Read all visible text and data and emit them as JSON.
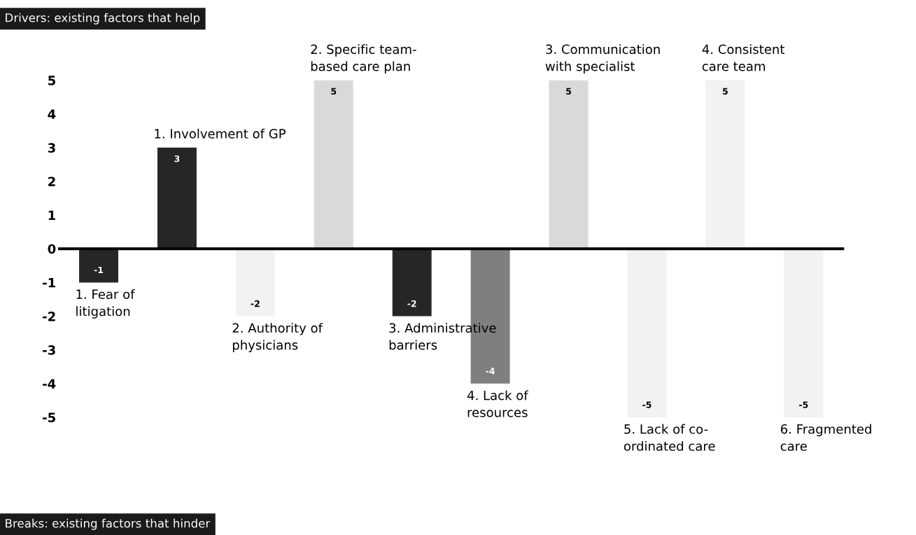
{
  "chart_data": {
    "type": "bar",
    "title": "Drivers: existing factors that help",
    "annotations": [
      "Breaks: existing factors that hinder"
    ],
    "categories": [
      "1. Fear of\nlitigation",
      "1. Involvement of GP",
      "2. Authority of\nphysicians",
      "2. Specific team-\nbased care plan",
      "3. Administrative\nbarriers",
      "4. Lack of\nresources",
      "3. Communication\nwith specialist",
      "5. Lack of co-\nordinated care",
      "4. Consistent\ncare team",
      "6. Fragmented\ncare"
    ],
    "values": [
      -1,
      3,
      -2,
      5,
      -2,
      -4,
      5,
      -5,
      5,
      -5
    ],
    "colors": [
      "#262626",
      "#262626",
      "#f2f2f2",
      "#d9d9d9",
      "#262626",
      "#7f7f7f",
      "#d9d9d9",
      "#f2f2f2",
      "#f2f2f2",
      "#f2f2f2"
    ],
    "ylim": [
      -5,
      5
    ],
    "yticks": [
      -5,
      -4,
      -3,
      -2,
      -1,
      0,
      1,
      2,
      3,
      4,
      5
    ],
    "data_labels": true,
    "tick_labels": "y",
    "legend": false
  }
}
